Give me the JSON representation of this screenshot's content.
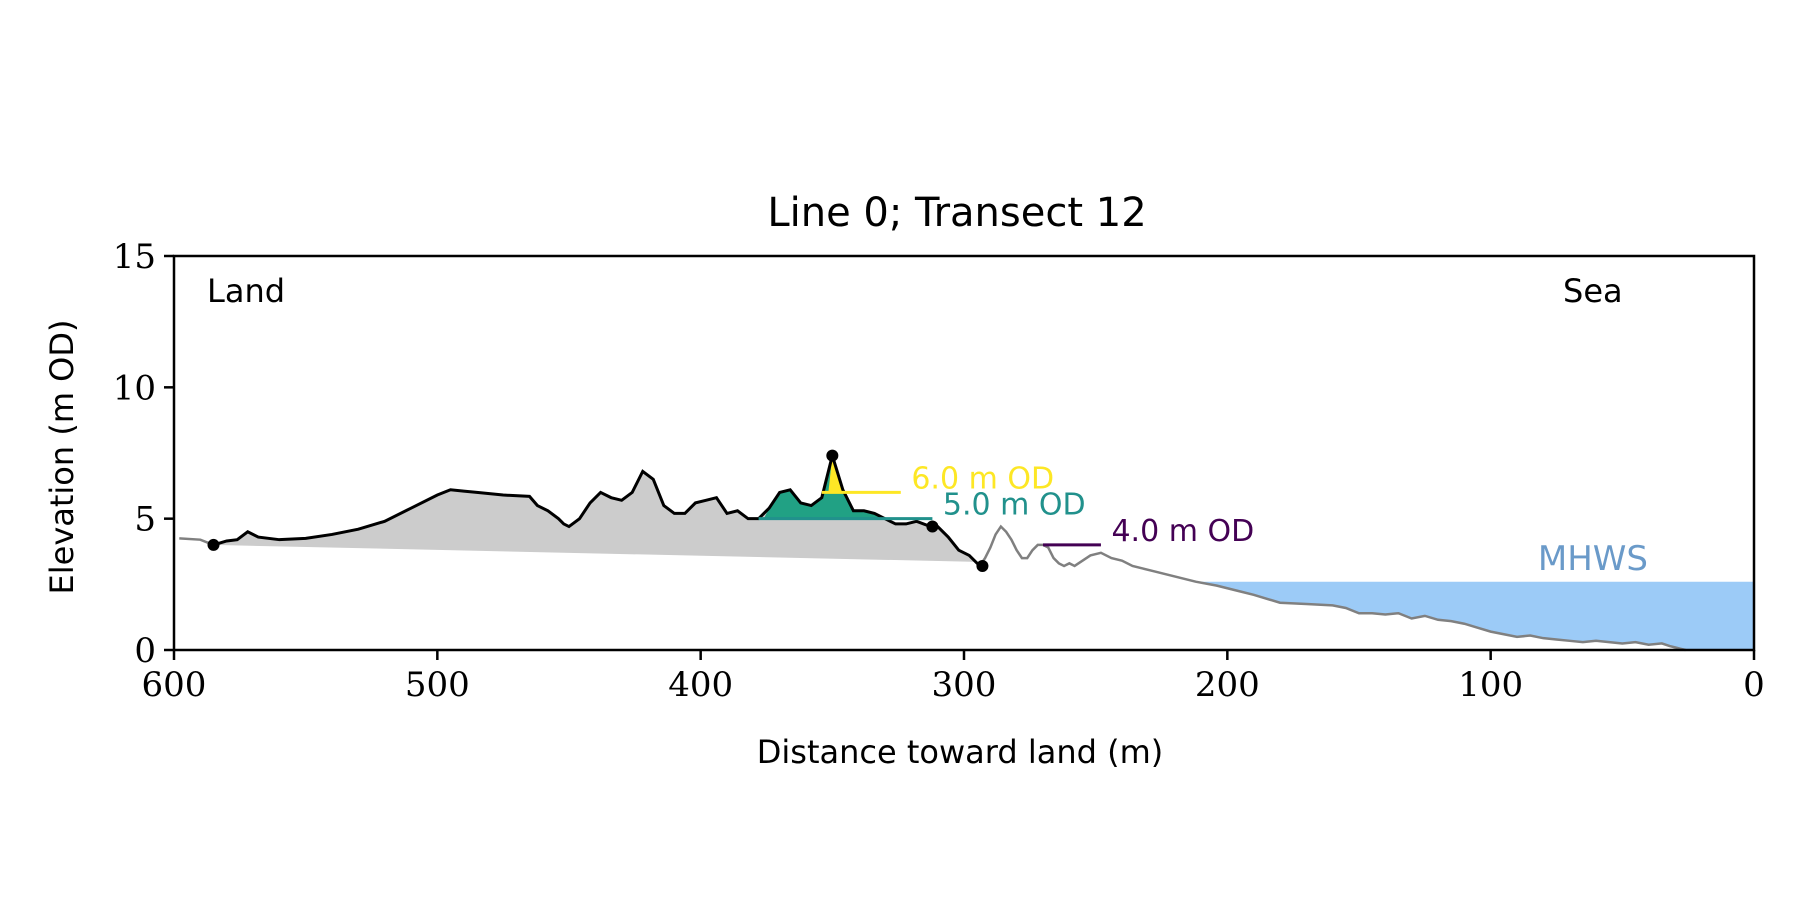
{
  "chart_data": {
    "type": "area",
    "title": "Line 0; Transect 12",
    "xlabel": "Distance toward land (m)",
    "ylabel": "Elevation (m OD)",
    "xlim": [
      600,
      0
    ],
    "ylim": [
      0,
      15
    ],
    "x_reversed": true,
    "xticks": [
      600,
      500,
      400,
      300,
      200,
      100,
      0
    ],
    "yticks": [
      0,
      5,
      10,
      15
    ],
    "grid": false,
    "annotations": {
      "land": "Land",
      "sea": "Sea",
      "mhws": "MHWS"
    },
    "mhws_level": 2.6,
    "profile": {
      "x": [
        598,
        590,
        585,
        580,
        576,
        572,
        568,
        560,
        550,
        540,
        530,
        520,
        510,
        500,
        495,
        490,
        485,
        475,
        465,
        462,
        458,
        454,
        452,
        450,
        446,
        442,
        438,
        434,
        430,
        426,
        422,
        418,
        414,
        410,
        406,
        402,
        398,
        394,
        390,
        386,
        382,
        378,
        374,
        370,
        366,
        362,
        358,
        354,
        350,
        346,
        342,
        338,
        334,
        330,
        326,
        322,
        318,
        314,
        310,
        306,
        302,
        298,
        294,
        292,
        290,
        288,
        286,
        284,
        282,
        280,
        278,
        276,
        274,
        272,
        270,
        268,
        266,
        264,
        262,
        260,
        258,
        255,
        252,
        248,
        244,
        240,
        236,
        232,
        228,
        220,
        212,
        204,
        196,
        190,
        180,
        170,
        160,
        155,
        150,
        145,
        140,
        135,
        130,
        125,
        120,
        115,
        110,
        105,
        100,
        95,
        90,
        85,
        80,
        75,
        70,
        65,
        60,
        55,
        50,
        45,
        40,
        35,
        32,
        30,
        28,
        26
      ],
      "y": [
        4.25,
        4.2,
        4.0,
        4.15,
        4.2,
        4.5,
        4.3,
        4.2,
        4.25,
        4.4,
        4.6,
        4.9,
        5.4,
        5.9,
        6.1,
        6.05,
        6.0,
        5.9,
        5.85,
        5.5,
        5.3,
        5.0,
        4.8,
        4.7,
        5.0,
        5.6,
        6.0,
        5.8,
        5.7,
        6.0,
        6.8,
        6.5,
        5.5,
        5.2,
        5.2,
        5.6,
        5.7,
        5.8,
        5.2,
        5.3,
        5.0,
        5.0,
        5.4,
        6.0,
        6.1,
        5.6,
        5.5,
        5.8,
        7.4,
        6.1,
        5.3,
        5.3,
        5.2,
        5.0,
        4.8,
        4.8,
        4.9,
        4.75,
        4.7,
        4.3,
        3.8,
        3.6,
        3.2,
        3.5,
        3.9,
        4.4,
        4.7,
        4.5,
        4.2,
        3.8,
        3.5,
        3.5,
        3.8,
        4.0,
        4.0,
        3.9,
        3.5,
        3.3,
        3.2,
        3.3,
        3.2,
        3.4,
        3.6,
        3.7,
        3.5,
        3.4,
        3.2,
        3.1,
        3.0,
        2.8,
        2.6,
        2.45,
        2.25,
        2.1,
        1.8,
        1.75,
        1.7,
        1.6,
        1.4,
        1.4,
        1.35,
        1.4,
        1.2,
        1.3,
        1.15,
        1.1,
        1.0,
        0.85,
        0.7,
        0.6,
        0.5,
        0.55,
        0.45,
        0.4,
        0.35,
        0.3,
        0.35,
        0.3,
        0.25,
        0.3,
        0.2,
        0.25,
        0.15,
        0.1,
        0.05,
        0.0
      ]
    },
    "dune_segment": {
      "x_start": 585,
      "x_end": 293
    },
    "dune_points": [
      {
        "x": 585,
        "y": 4.0
      },
      {
        "x": 350,
        "y": 7.4
      },
      {
        "x": 312,
        "y": 4.7
      },
      {
        "x": 293,
        "y": 3.2
      }
    ],
    "thresholds": [
      {
        "label": "6.0 m OD",
        "level": 6.0,
        "color": "#fde725",
        "x_start": 354,
        "x_end": 324,
        "label_x": 320
      },
      {
        "label": "5.0 m OD",
        "level": 5.0,
        "color": "#21918c",
        "x_start": 378,
        "x_end": 312,
        "label_x": 308
      },
      {
        "label": "4.0 m OD",
        "level": 4.0,
        "color": "#440154",
        "x_start": 270,
        "x_end": 248,
        "label_x": 244
      }
    ],
    "colors": {
      "dune_fill": "#cccccc",
      "profile_line": "#000000",
      "outside_line": "#808080",
      "mhws_fill": "#9ccbf7",
      "mhws_text": "#6a9ac9",
      "fill_6m": "#fde725",
      "fill_5m": "#21a184"
    }
  }
}
